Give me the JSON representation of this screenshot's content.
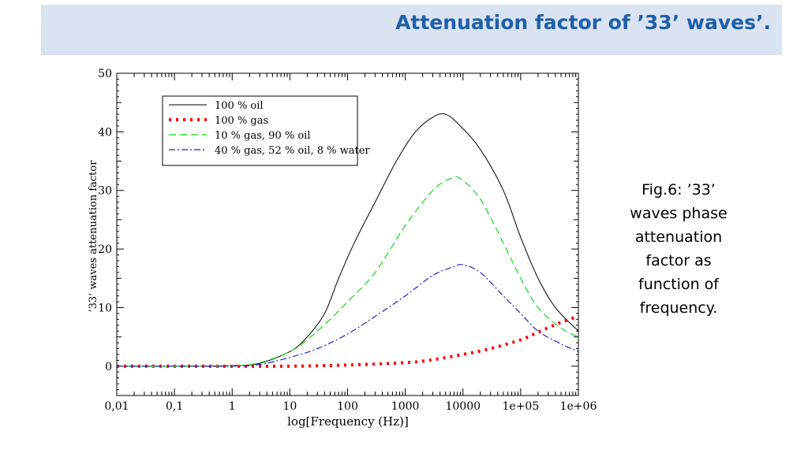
{
  "header": {
    "title": "Attenuation factor of ’33’ waves’."
  },
  "caption": {
    "lines": [
      "Fig.6: ’33’",
      "waves phase",
      "attenuation",
      "factor as",
      "function of",
      "frequency."
    ]
  },
  "chart_data": {
    "type": "line",
    "title": "",
    "xlabel": "log[Frequency (Hz)]",
    "ylabel": "’33’ waves attenuation factor",
    "xscale": "log",
    "xlim": [
      0.01,
      1000000
    ],
    "ylim": [
      -5,
      50
    ],
    "x_ticks": [
      0.01,
      0.1,
      1,
      10,
      100,
      1000,
      10000,
      100000,
      1000000
    ],
    "x_tick_labels": [
      "0,01",
      "0,1",
      "1",
      "10",
      "100",
      "1000",
      "10000",
      "1e+05",
      "1e+06"
    ],
    "y_ticks": [
      0,
      10,
      20,
      30,
      40,
      50
    ],
    "y_tick_labels": [
      "0",
      "10",
      "20",
      "30",
      "40",
      "50"
    ],
    "grid": false,
    "legend_position": "top-left",
    "series": [
      {
        "name": "100 % oil",
        "color": "#000000",
        "style": "solid",
        "x": [
          0.01,
          0.1,
          1,
          3,
          10,
          20,
          40,
          70,
          130,
          300,
          700,
          1500,
          3000,
          5000,
          9000,
          20000,
          50000,
          100000,
          200000,
          400000,
          1000000
        ],
        "y": [
          0,
          0,
          0.1,
          0.5,
          2.5,
          5,
          9,
          15,
          21,
          28,
          35,
          40,
          42.5,
          43,
          41,
          37,
          30,
          22,
          15,
          10,
          6
        ]
      },
      {
        "name": "100 % gas",
        "color": "#ff0000",
        "style": "dotted",
        "x": [
          0.01,
          0.1,
          1,
          10,
          100,
          1000,
          3000,
          10000,
          30000,
          100000,
          200000,
          500000,
          1000000
        ],
        "y": [
          0,
          0,
          0,
          0,
          0.2,
          0.6,
          1.1,
          2,
          3,
          4.5,
          5.8,
          7.5,
          8.5
        ]
      },
      {
        "name": "10 % gas, 90 % oil",
        "color": "#33dd33",
        "style": "dashed",
        "x": [
          0.01,
          0.1,
          1,
          3,
          10,
          20,
          50,
          100,
          300,
          1000,
          3000,
          6000,
          9000,
          20000,
          50000,
          100000,
          200000,
          500000,
          1000000
        ],
        "y": [
          0,
          0,
          0.1,
          0.6,
          2.5,
          4.5,
          8,
          11,
          16,
          24,
          30,
          32,
          32,
          28.5,
          21,
          15,
          10,
          6.5,
          5
        ]
      },
      {
        "name": "40 % gas, 52 % oil, 8 % water",
        "color": "#2222cc",
        "style": "dashdot",
        "x": [
          0.01,
          0.1,
          1,
          3,
          10,
          30,
          100,
          300,
          1000,
          3000,
          7000,
          10000,
          20000,
          50000,
          100000,
          200000,
          500000,
          1000000
        ],
        "y": [
          0,
          0,
          0,
          0.3,
          1.5,
          3,
          5.5,
          8.5,
          12,
          15.5,
          17,
          17.3,
          16,
          12,
          9,
          6,
          3.8,
          2.5
        ]
      }
    ]
  }
}
